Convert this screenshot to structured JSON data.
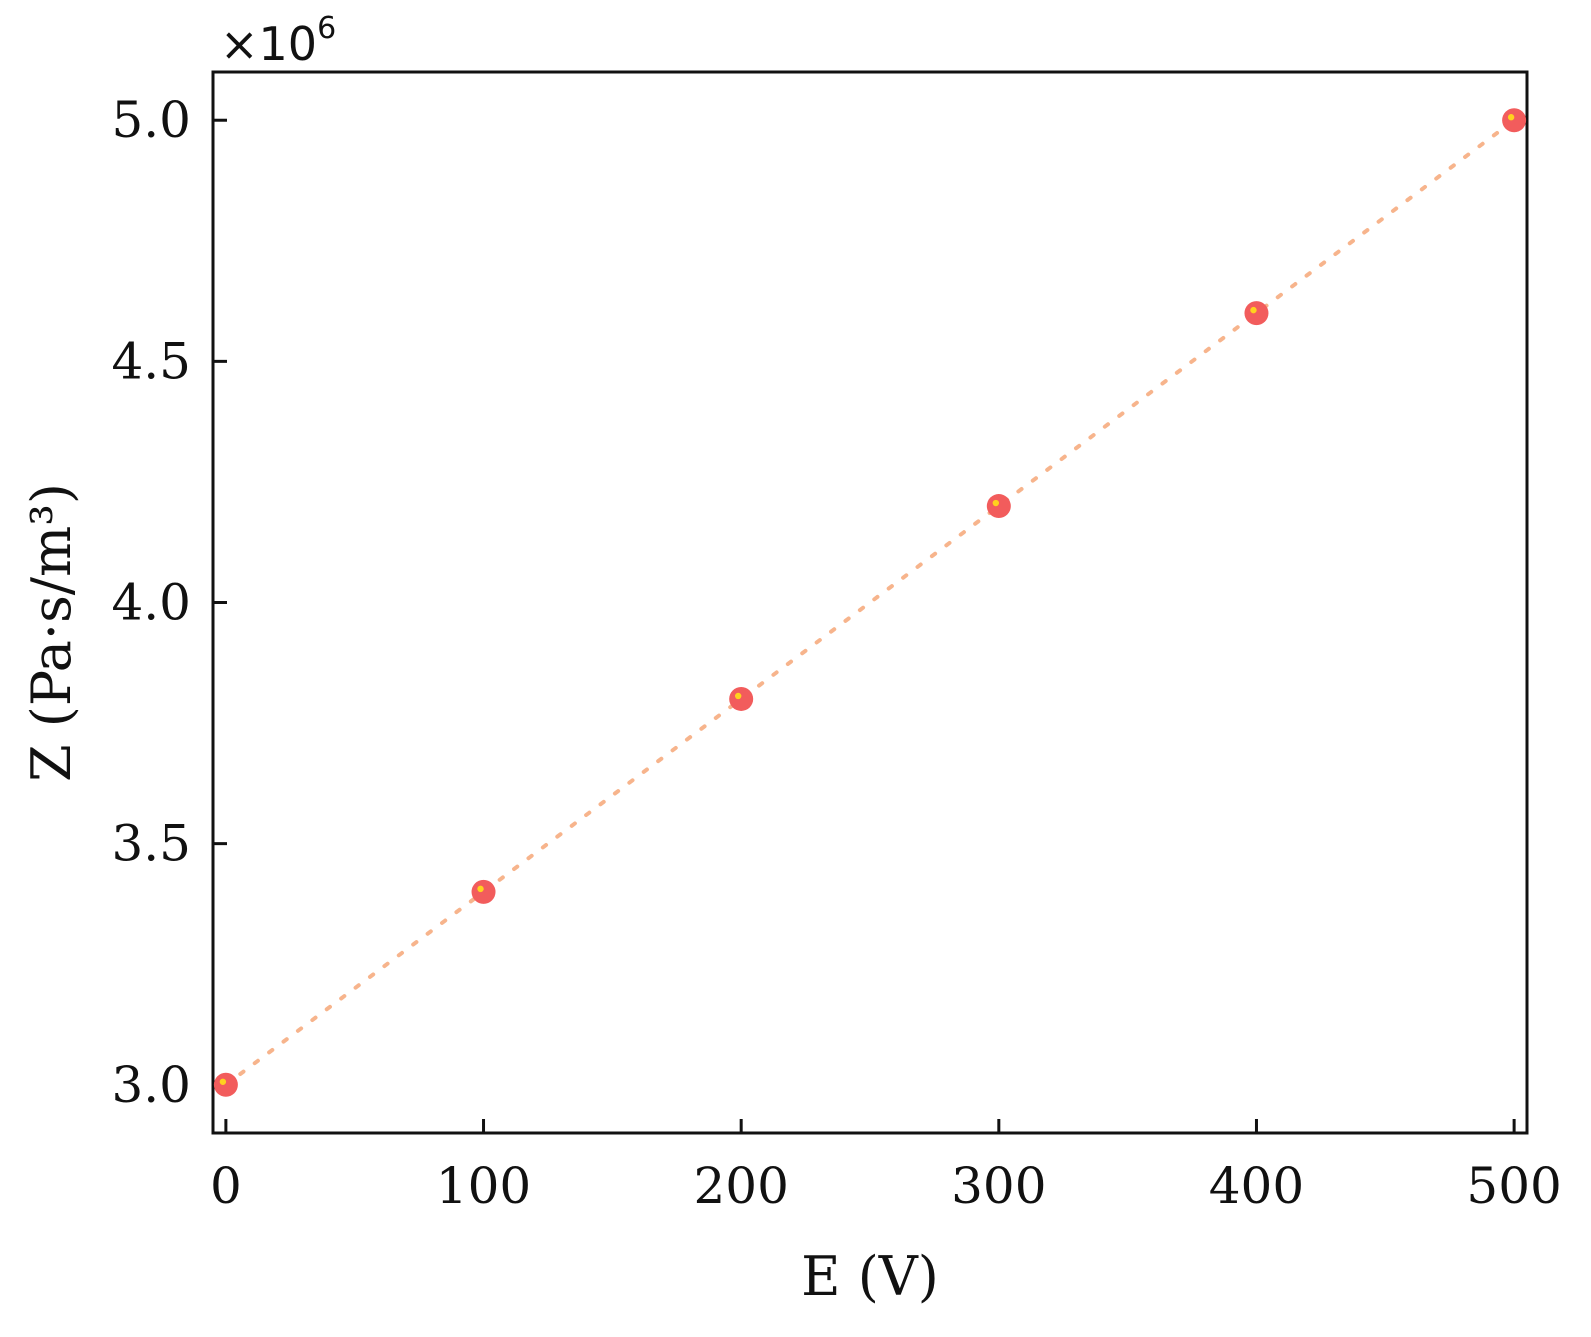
{
  "chart_data": {
    "type": "scatter",
    "title": "",
    "xlabel": "E (V)",
    "ylabel": "Z (Pa·s/m³)",
    "y_multiplier": {
      "base": "×10",
      "exponent": "6"
    },
    "xlim": [
      -5,
      505
    ],
    "ylim": [
      2.9,
      5.1
    ],
    "x_ticks": [
      0,
      100,
      200,
      300,
      400,
      500
    ],
    "x_tick_labels": [
      "0",
      "100",
      "200",
      "300",
      "400",
      "500"
    ],
    "y_ticks": [
      3.0,
      3.5,
      4.0,
      4.5,
      5.0
    ],
    "y_tick_labels": [
      "3.0",
      "3.5",
      "4.0",
      "4.5",
      "5.0"
    ],
    "grid": false,
    "series": [
      {
        "marker": "circle",
        "trendline": "linear-dotted",
        "x": [
          0,
          100,
          200,
          300,
          400,
          500
        ],
        "y": [
          3.0,
          3.4,
          3.8,
          4.2,
          4.6,
          5.0
        ]
      }
    ],
    "colors": {
      "marker_fill": "#f25c5c",
      "marker_highlight": "#ffd21e",
      "trendline": "#f7b48c",
      "axis": "#111111"
    }
  }
}
